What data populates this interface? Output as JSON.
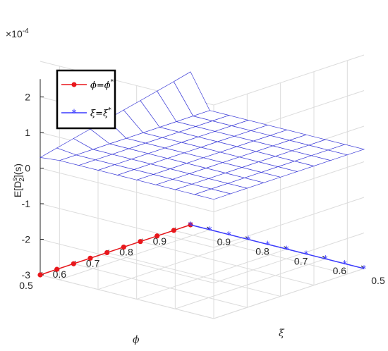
{
  "chart_data": {
    "type": "surface",
    "title": "",
    "xlabel": "ϕ",
    "ylabel": "ξ",
    "zlabel": "E[D_2^s](s)",
    "zlabel_parts": {
      "base": "E[D",
      "sup": "s",
      "sub": "2",
      "tail": "](s)"
    },
    "exponent_label": {
      "base": "×10",
      "exp": "-4"
    },
    "xlim": [
      0.5,
      0.95
    ],
    "ylim": [
      0.5,
      0.95
    ],
    "zlim": [
      -3,
      3
    ],
    "x_ticks": [
      0.5,
      0.6,
      0.7,
      0.8,
      0.9
    ],
    "x_tick_labels": [
      "0.5",
      "0.6",
      "0.7",
      "0.8",
      "0.9"
    ],
    "y_ticks": [
      0.5,
      0.6,
      0.7,
      0.8,
      0.9
    ],
    "y_tick_labels": [
      "0.5",
      "0.6",
      "0.7",
      "0.8",
      "0.9"
    ],
    "z_ticks": [
      -3,
      -2,
      -1,
      0,
      1,
      2
    ],
    "z_tick_labels": [
      "-3",
      "-2",
      "-1",
      "0",
      "1",
      "2"
    ],
    "grid": true,
    "legend_position": "top-left",
    "surface": {
      "phi": [
        0.5,
        0.55,
        0.6,
        0.65,
        0.7,
        0.75,
        0.8,
        0.85,
        0.9,
        0.95
      ],
      "xi": [
        0.5,
        0.55,
        0.6,
        0.65,
        0.7,
        0.75,
        0.8,
        0.85,
        0.9,
        0.95
      ],
      "z_plateau": 0.35,
      "z_edge_phi_0_5": [
        0.35,
        0.35,
        0.35,
        0.35,
        0.35,
        0.35,
        0.35,
        0.35,
        0.35,
        0.35
      ],
      "z_edge_xi_0_5": [
        0.35,
        0.35,
        0.35,
        0.35,
        0.35,
        0.35,
        0.35,
        0.35,
        0.35,
        0.35
      ],
      "z_edge_phi_0_95": [
        0.35,
        0.35,
        0.35,
        0.35,
        0.35,
        0.35,
        0.35,
        0.35,
        0.35,
        -0.6
      ],
      "z_edge_xi_0_95": [
        0.3,
        0.41,
        0.52,
        0.63,
        0.74,
        0.85,
        0.96,
        1.07,
        1.18,
        1.3
      ],
      "mesh_color": "#3f3fd8",
      "mesh_color_high": "#d8d84a",
      "fill_color": "#ffffff"
    },
    "series": [
      {
        "name": "ϕ=ϕ*",
        "name_parts": {
          "lhs": "ϕ",
          "rhs": "ϕ",
          "sup": "*"
        },
        "marker": "circle",
        "color": "#e8161b",
        "phi": [
          0.5,
          0.55,
          0.6,
          0.65,
          0.7,
          0.75,
          0.8,
          0.85,
          0.9,
          0.95
        ],
        "xi": [
          0.95,
          0.95,
          0.95,
          0.95,
          0.95,
          0.95,
          0.95,
          0.95,
          0.95,
          0.95
        ],
        "z": [
          -3,
          -3,
          -3,
          -3,
          -3,
          -3,
          -3,
          -3,
          -3,
          -3
        ]
      },
      {
        "name": "ξ=ξ*",
        "name_parts": {
          "lhs": "ξ",
          "rhs": "ξ",
          "sup": "*"
        },
        "marker": "asterisk",
        "color": "#3a3aff",
        "phi": [
          0.95,
          0.95,
          0.95,
          0.95,
          0.95,
          0.95,
          0.95,
          0.95,
          0.95,
          0.95
        ],
        "xi": [
          0.95,
          0.9,
          0.85,
          0.8,
          0.75,
          0.7,
          0.65,
          0.6,
          0.55,
          0.5
        ],
        "z": [
          -3,
          -3,
          -3,
          -3,
          -3,
          -3,
          -3,
          -3,
          -3,
          -3
        ]
      }
    ]
  }
}
